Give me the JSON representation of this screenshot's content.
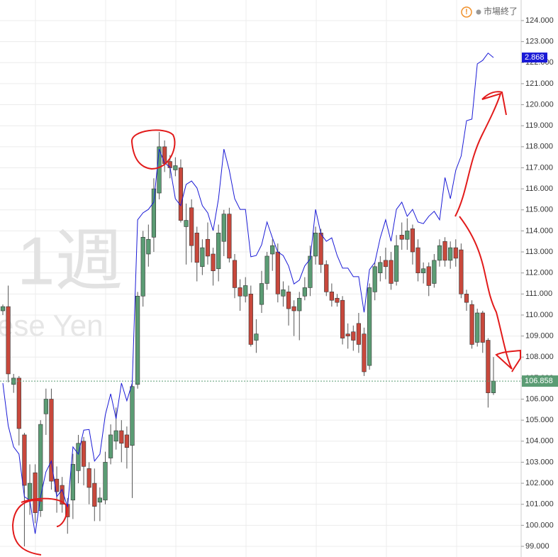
{
  "chart_data": {
    "type": "candlestick",
    "watermark": "1週",
    "watermark_sub": "ese Yen",
    "status": "市場終了",
    "status_icon": "!",
    "ylim": [
      99,
      124
    ],
    "y2lim": [
      1.32,
      2.985
    ],
    "grid": true,
    "up_color": "#5b9c74",
    "down_color": "#c8483c",
    "yticks": [
      {
        "value": 99,
        "label": "99.000"
      },
      {
        "value": 100,
        "label": "100.000"
      },
      {
        "value": 101,
        "label": "101.000"
      },
      {
        "value": 102,
        "label": "102.000"
      },
      {
        "value": 103,
        "label": "103.000"
      },
      {
        "value": 104,
        "label": "104.000"
      },
      {
        "value": 105,
        "label": "105.000"
      },
      {
        "value": 106,
        "label": "106.000"
      },
      {
        "value": 107,
        "label": "107.000"
      },
      {
        "value": 108,
        "label": "108.000"
      },
      {
        "value": 109,
        "label": "109.000"
      },
      {
        "value": 110,
        "label": "110.000"
      },
      {
        "value": 111,
        "label": "111.000"
      },
      {
        "value": 112,
        "label": "112.000"
      },
      {
        "value": 113,
        "label": "113.000"
      },
      {
        "value": 114,
        "label": "114.000"
      },
      {
        "value": 115,
        "label": "115.000"
      },
      {
        "value": 116,
        "label": "116.000"
      },
      {
        "value": 117,
        "label": "117.000"
      },
      {
        "value": 118,
        "label": "118.000"
      },
      {
        "value": 119,
        "label": "119.000"
      },
      {
        "value": 120,
        "label": "120.000"
      },
      {
        "value": 121,
        "label": "121.000"
      },
      {
        "value": 122,
        "label": "122.000"
      },
      {
        "value": 123,
        "label": "123.000"
      },
      {
        "value": 124,
        "label": "124.000"
      }
    ],
    "open": [
      110.2,
      110.4,
      106.7,
      107.0,
      104.3,
      101.2,
      102.5,
      100.7,
      105.3,
      106.0,
      102.2,
      101.9,
      101.0,
      101.2,
      102.6,
      104.0,
      102.7,
      102.0,
      101.1,
      101.2,
      103.2,
      104.0,
      104.5,
      104.3,
      103.8,
      106.7,
      110.9,
      112.9,
      113.7,
      115.8,
      118.0,
      117.3,
      116.9,
      117.0,
      114.2,
      115.1,
      113.9,
      112.3,
      113.6,
      112.9,
      112.2,
      113.5,
      114.8,
      112.6,
      111.3,
      110.9,
      111.0,
      108.8,
      110.5,
      111.5,
      112.9,
      113.0,
      110.9,
      111.1,
      110.4,
      110.2,
      110.9,
      111.3,
      112.8,
      113.9,
      112.4,
      111.1,
      110.8,
      110.7,
      109.1,
      109.2,
      109.6,
      109.1,
      107.6,
      111.1,
      112.0,
      112.6,
      112.6,
      111.6,
      113.8,
      113.6,
      114.1,
      113.2,
      112.0,
      112.3,
      111.5,
      112.6,
      113.5,
      112.6,
      113.2,
      113.1,
      111.0,
      110.5,
      108.7,
      110.1,
      108.8,
      106.3
    ],
    "high": [
      110.5,
      111.4,
      107.2,
      107.1,
      104.4,
      102.9,
      102.9,
      105.0,
      106.5,
      106.5,
      102.8,
      102.3,
      101.3,
      103.4,
      104.3,
      104.2,
      103.0,
      102.7,
      101.8,
      103.5,
      104.8,
      105.6,
      105.0,
      104.7,
      106.9,
      111.1,
      114.0,
      114.3,
      116.5,
      118.7,
      118.3,
      117.6,
      117.5,
      117.4,
      115.3,
      115.5,
      114.2,
      113.6,
      114.4,
      113.2,
      114.3,
      115.0,
      115.1,
      112.9,
      111.7,
      111.8,
      111.4,
      109.8,
      112.1,
      113.0,
      113.6,
      113.4,
      111.6,
      111.4,
      110.7,
      111.1,
      111.8,
      113.3,
      114.2,
      114.1,
      112.6,
      111.5,
      111.0,
      110.9,
      109.6,
      109.5,
      110.1,
      109.4,
      111.5,
      112.5,
      112.8,
      113.2,
      113.0,
      113.8,
      114.4,
      114.6,
      114.3,
      113.6,
      112.5,
      112.5,
      112.9,
      113.6,
      113.7,
      113.5,
      113.6,
      113.4,
      111.2,
      110.7,
      110.3,
      110.2,
      108.9,
      108.0
    ],
    "low": [
      110.0,
      106.8,
      106.3,
      103.8,
      99.0,
      100.5,
      100.1,
      100.4,
      104.3,
      101.7,
      100.6,
      100.6,
      99.6,
      100.3,
      102.0,
      101.9,
      101.0,
      100.2,
      100.2,
      101.0,
      102.9,
      103.6,
      103.0,
      102.7,
      101.3,
      106.5,
      110.4,
      112.3,
      113.0,
      115.5,
      116.8,
      116.5,
      116.6,
      114.4,
      112.4,
      112.5,
      111.6,
      111.9,
      112.4,
      111.4,
      111.6,
      112.8,
      112.5,
      110.8,
      110.2,
      110.6,
      108.5,
      108.2,
      110.1,
      111.2,
      112.1,
      110.6,
      110.4,
      109.5,
      109.0,
      108.8,
      110.7,
      110.9,
      112.4,
      112.0,
      110.9,
      110.4,
      110.4,
      108.6,
      108.4,
      108.3,
      108.2,
      107.1,
      107.4,
      110.7,
      111.6,
      111.7,
      111.2,
      111.4,
      113.1,
      113.1,
      112.4,
      111.6,
      111.5,
      110.9,
      111.3,
      112.3,
      112.3,
      112.2,
      112.3,
      110.8,
      110.2,
      108.4,
      108.5,
      108.2,
      105.6,
      106.2
    ],
    "close": [
      110.4,
      107.2,
      107.0,
      104.6,
      101.9,
      102.0,
      100.6,
      104.8,
      106.0,
      102.1,
      101.6,
      101.0,
      100.4,
      102.9,
      103.9,
      102.8,
      101.8,
      100.9,
      101.3,
      103.0,
      104.3,
      104.5,
      103.9,
      103.7,
      106.6,
      110.9,
      113.7,
      113.6,
      116.0,
      118.0,
      117.2,
      117.0,
      117.1,
      114.5,
      114.5,
      113.3,
      112.5,
      113.2,
      112.8,
      112.1,
      113.9,
      114.8,
      112.7,
      111.3,
      110.9,
      111.4,
      108.6,
      109.1,
      111.5,
      112.8,
      113.3,
      111.0,
      111.2,
      110.3,
      110.2,
      110.8,
      111.3,
      112.8,
      113.9,
      112.4,
      111.1,
      110.7,
      110.6,
      108.9,
      109.0,
      108.8,
      108.6,
      107.3,
      111.3,
      112.3,
      112.5,
      112.3,
      111.5,
      113.3,
      113.6,
      114.0,
      113.0,
      112.0,
      112.2,
      111.4,
      112.6,
      113.3,
      112.6,
      113.2,
      112.7,
      111.0,
      110.6,
      108.6,
      110.1,
      108.7,
      106.3,
      106.858
    ],
    "series": [
      {
        "color": "#1a1ad6",
        "axis": "y2",
        "values": [
          1.837,
          1.702,
          1.635,
          1.612,
          1.477,
          1.466,
          1.36,
          1.477,
          1.556,
          1.59,
          1.477,
          1.5,
          1.444,
          1.635,
          1.612,
          1.688,
          1.69,
          1.59,
          1.612,
          1.736,
          1.803,
          1.724,
          1.837,
          1.781,
          1.837,
          2.354,
          2.376,
          2.387,
          2.41,
          2.578,
          2.533,
          2.522,
          2.421,
          2.399,
          2.466,
          2.477,
          2.455,
          2.399,
          2.376,
          2.32,
          2.421,
          2.578,
          2.511,
          2.421,
          2.387,
          2.387,
          2.237,
          2.241,
          2.275,
          2.347,
          2.297,
          2.252,
          2.241,
          2.208,
          2.151,
          2.163,
          2.208,
          2.23,
          2.387,
          2.309,
          2.286,
          2.297,
          2.241,
          2.201,
          2.201,
          2.174,
          2.174,
          2.061,
          2.196,
          2.219,
          2.297,
          2.354,
          2.286,
          2.387,
          2.41,
          2.365,
          2.387,
          2.347,
          2.342,
          2.365,
          2.381,
          2.354,
          2.488,
          2.421,
          2.511,
          2.556,
          2.668,
          2.673,
          2.848,
          2.859,
          2.882,
          2.868
        ]
      }
    ]
  }
}
